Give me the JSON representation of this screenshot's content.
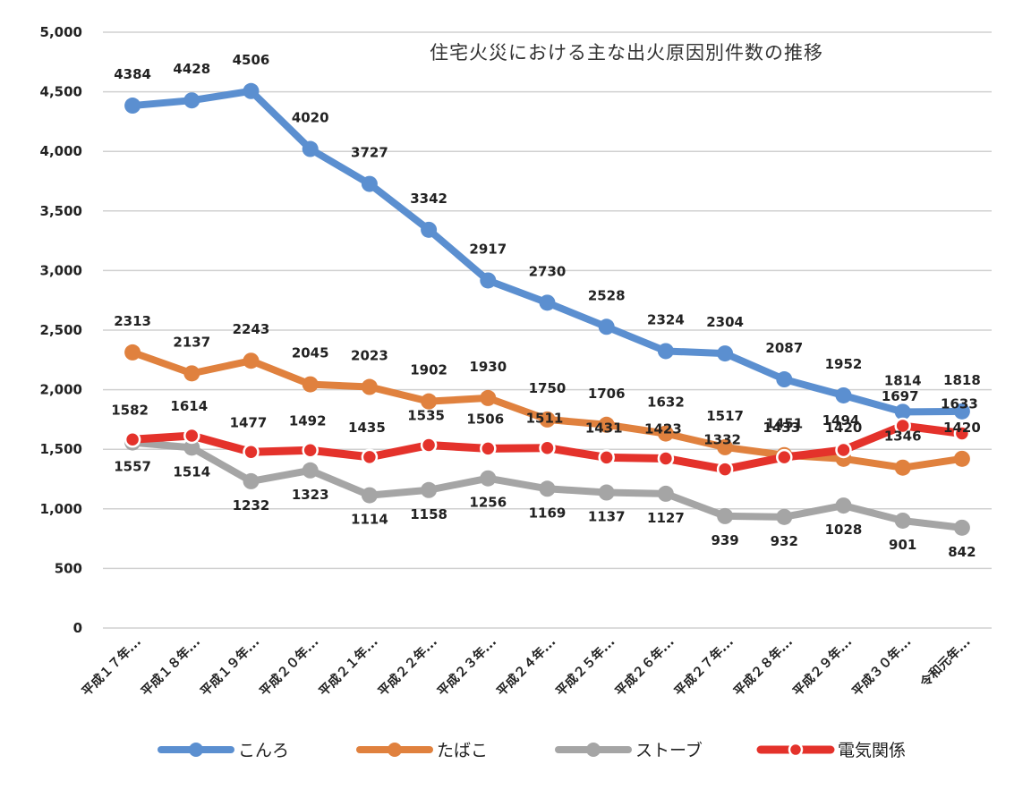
{
  "chart_data": {
    "type": "line",
    "title": "住宅火災における主な出火原因別件数の推移",
    "xlabel": "",
    "ylabel": "",
    "ylim": [
      0,
      5000
    ],
    "yticks": [
      0,
      500,
      1000,
      1500,
      2000,
      2500,
      3000,
      3500,
      4000,
      4500,
      5000
    ],
    "ytick_labels": [
      "0",
      "500",
      "1,000",
      "1,500",
      "2,000",
      "2,500",
      "3,000",
      "3,500",
      "4,000",
      "4,500",
      "5,000"
    ],
    "grid": "horizontal",
    "legend_position": "bottom",
    "categories": [
      "平成１７年...",
      "平成１８年...",
      "平成１９年...",
      "平成２０年...",
      "平成２１年...",
      "平成２２年...",
      "平成２３年...",
      "平成２４年...",
      "平成２５年...",
      "平成２６年...",
      "平成２７年...",
      "平成２８年...",
      "平成２９年...",
      "平成３０年...",
      "令和元年..."
    ],
    "series": [
      {
        "name": "こんろ",
        "color": "#5b8fd0",
        "values": [
          4384,
          4428,
          4506,
          4020,
          3727,
          3342,
          2917,
          2730,
          2528,
          2324,
          2304,
          2087,
          1952,
          1814,
          1818
        ]
      },
      {
        "name": "たばこ",
        "color": "#e0813e",
        "values": [
          2313,
          2137,
          2243,
          2045,
          2023,
          1902,
          1930,
          1750,
          1706,
          1632,
          1517,
          1451,
          1420,
          1346,
          1420
        ]
      },
      {
        "name": "ストーブ",
        "color": "#a5a5a5",
        "values": [
          1557,
          1514,
          1232,
          1323,
          1114,
          1158,
          1256,
          1169,
          1137,
          1127,
          939,
          932,
          1028,
          901,
          842
        ]
      },
      {
        "name": "電気関係",
        "color": "#e4322b",
        "values": [
          1582,
          1614,
          1477,
          1492,
          1435,
          1535,
          1506,
          1511,
          1431,
          1423,
          1332,
          1433,
          1494,
          1697,
          1633
        ]
      }
    ]
  }
}
